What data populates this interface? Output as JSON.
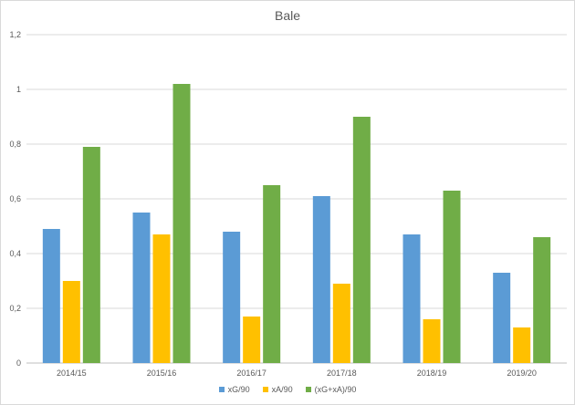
{
  "chart_data": {
    "type": "bar",
    "title": "Bale",
    "categories": [
      "2014/15",
      "2015/16",
      "2016/17",
      "2017/18",
      "2018/19",
      "2019/20"
    ],
    "series": [
      {
        "name": "xG/90",
        "color": "#5b9bd5",
        "values": [
          0.49,
          0.55,
          0.48,
          0.61,
          0.47,
          0.33
        ]
      },
      {
        "name": "xA/90",
        "color": "#ffc000",
        "values": [
          0.3,
          0.47,
          0.17,
          0.29,
          0.16,
          0.13
        ]
      },
      {
        "name": "(xG+xA)/90",
        "color": "#70ad47",
        "values": [
          0.79,
          1.02,
          0.65,
          0.9,
          0.63,
          0.46
        ]
      }
    ],
    "ylim": [
      0,
      1.2
    ],
    "yticks": [
      "0",
      "0,2",
      "0,4",
      "0,6",
      "0,8",
      "1",
      "1,2"
    ],
    "grid": true,
    "legend_position": "bottom"
  }
}
